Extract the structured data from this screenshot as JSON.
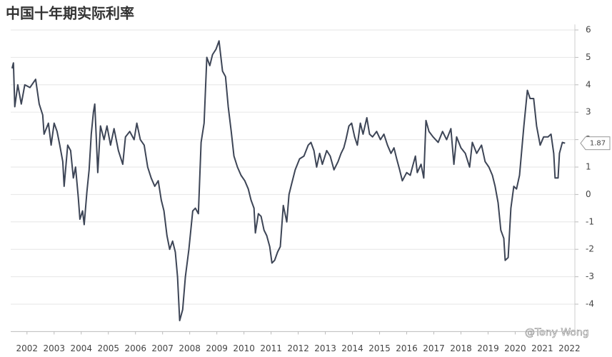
{
  "chart_data": {
    "type": "line",
    "title": "中国十年期实际利率",
    "watermark": "@Tony Wong",
    "x": [
      2001.45,
      2001.5,
      2001.55,
      2001.66,
      2001.79,
      2001.92,
      2002.11,
      2002.32,
      2002.45,
      2002.58,
      2002.63,
      2002.79,
      2002.89,
      2003.0,
      2003.11,
      2003.21,
      2003.32,
      2003.37,
      2003.5,
      2003.61,
      2003.71,
      2003.79,
      2003.89,
      2003.95,
      2004.05,
      2004.11,
      2004.21,
      2004.29,
      2004.37,
      2004.45,
      2004.5,
      2004.55,
      2004.61,
      2004.71,
      2004.84,
      2004.95,
      2005.08,
      2005.21,
      2005.37,
      2005.53,
      2005.63,
      2005.79,
      2005.95,
      2006.05,
      2006.18,
      2006.32,
      2006.45,
      2006.58,
      2006.71,
      2006.84,
      2006.95,
      2007.05,
      2007.16,
      2007.26,
      2007.37,
      2007.47,
      2007.55,
      2007.63,
      2007.74,
      2007.84,
      2007.97,
      2008.11,
      2008.21,
      2008.32,
      2008.42,
      2008.53,
      2008.63,
      2008.74,
      2008.84,
      2008.97,
      2009.08,
      2009.21,
      2009.32,
      2009.42,
      2009.53,
      2009.63,
      2009.76,
      2009.89,
      2010.03,
      2010.16,
      2010.26,
      2010.37,
      2010.42,
      2010.53,
      2010.63,
      2010.74,
      2010.84,
      2010.95,
      2011.03,
      2011.13,
      2011.24,
      2011.34,
      2011.45,
      2011.58,
      2011.66,
      2011.76,
      2011.89,
      2012.05,
      2012.21,
      2012.37,
      2012.47,
      2012.58,
      2012.68,
      2012.79,
      2012.89,
      2013.05,
      2013.18,
      2013.32,
      2013.47,
      2013.58,
      2013.68,
      2013.76,
      2013.87,
      2013.97,
      2014.08,
      2014.18,
      2014.29,
      2014.39,
      2014.53,
      2014.63,
      2014.74,
      2014.89,
      2015.03,
      2015.16,
      2015.29,
      2015.42,
      2015.53,
      2015.63,
      2015.74,
      2015.84,
      2016.0,
      2016.13,
      2016.21,
      2016.32,
      2016.39,
      2016.53,
      2016.63,
      2016.71,
      2016.82,
      2016.97,
      2017.16,
      2017.32,
      2017.47,
      2017.63,
      2017.74,
      2017.84,
      2018.0,
      2018.16,
      2018.32,
      2018.42,
      2018.58,
      2018.76,
      2018.89,
      2019.03,
      2019.16,
      2019.26,
      2019.37,
      2019.47,
      2019.58,
      2019.63,
      2019.74,
      2019.84,
      2019.95,
      2020.05,
      2020.16,
      2020.32,
      2020.45,
      2020.55,
      2020.68,
      2020.79,
      2020.92,
      2021.05,
      2021.21,
      2021.32,
      2021.42,
      2021.47,
      2021.58,
      2021.63,
      2021.74,
      2021.84
    ],
    "series": [
      {
        "color": "#3d4556",
        "values": [
          4.6,
          4.8,
          3.2,
          4.0,
          3.3,
          4.0,
          3.9,
          4.2,
          3.3,
          2.9,
          2.2,
          2.6,
          1.8,
          2.6,
          2.3,
          1.8,
          1.2,
          0.3,
          1.8,
          1.6,
          0.6,
          1.0,
          -0.1,
          -0.9,
          -0.6,
          -1.1,
          0.1,
          0.9,
          2.2,
          3.0,
          3.3,
          2.2,
          0.8,
          2.5,
          2.0,
          2.5,
          1.8,
          2.4,
          1.6,
          1.1,
          2.1,
          2.3,
          2.0,
          2.6,
          2.0,
          1.8,
          1.0,
          0.6,
          0.3,
          0.5,
          -0.2,
          -0.6,
          -1.5,
          -2.0,
          -1.7,
          -2.1,
          -3.0,
          -4.6,
          -4.2,
          -3.0,
          -2.0,
          -0.6,
          -0.5,
          -0.7,
          1.9,
          2.6,
          5.0,
          4.7,
          5.1,
          5.3,
          5.6,
          4.5,
          4.3,
          3.2,
          2.3,
          1.4,
          1.0,
          0.7,
          0.5,
          0.2,
          -0.2,
          -0.5,
          -1.4,
          -0.7,
          -0.8,
          -1.3,
          -1.5,
          -1.9,
          -2.5,
          -2.4,
          -2.1,
          -1.9,
          -0.4,
          -1.0,
          0.0,
          0.4,
          0.9,
          1.3,
          1.4,
          1.8,
          1.9,
          1.6,
          1.0,
          1.5,
          1.1,
          1.6,
          1.4,
          0.9,
          1.2,
          1.5,
          1.7,
          2.0,
          2.5,
          2.6,
          2.1,
          1.8,
          2.6,
          2.2,
          2.8,
          2.2,
          2.1,
          2.3,
          2.0,
          2.2,
          1.8,
          1.5,
          1.7,
          1.3,
          0.9,
          0.5,
          0.8,
          0.7,
          1.0,
          1.4,
          0.8,
          1.1,
          0.6,
          2.7,
          2.3,
          2.1,
          1.9,
          2.3,
          2.0,
          2.4,
          1.1,
          2.1,
          1.7,
          1.5,
          1.0,
          1.9,
          1.5,
          1.8,
          1.2,
          1.0,
          0.7,
          0.3,
          -0.3,
          -1.3,
          -1.6,
          -2.4,
          -2.3,
          -0.5,
          0.3,
          0.2,
          0.7,
          2.5,
          3.8,
          3.5,
          3.5,
          2.5,
          1.8,
          2.1,
          2.1,
          2.2,
          1.5,
          0.6,
          0.6,
          1.5,
          1.9,
          1.87
        ]
      }
    ],
    "xlim": [
      2001.4,
      2022.2
    ],
    "xticks": [
      2002,
      2003,
      2004,
      2005,
      2006,
      2007,
      2008,
      2009,
      2010,
      2011,
      2012,
      2013,
      2014,
      2015,
      2016,
      2017,
      2018,
      2019,
      2020,
      2021,
      2022
    ],
    "ylim": [
      -5,
      6.2
    ],
    "yticks": [
      -4,
      -3,
      -2,
      -1,
      0,
      1,
      2,
      3,
      4,
      5,
      6
    ],
    "grid": true,
    "y_axis_side": "right"
  }
}
